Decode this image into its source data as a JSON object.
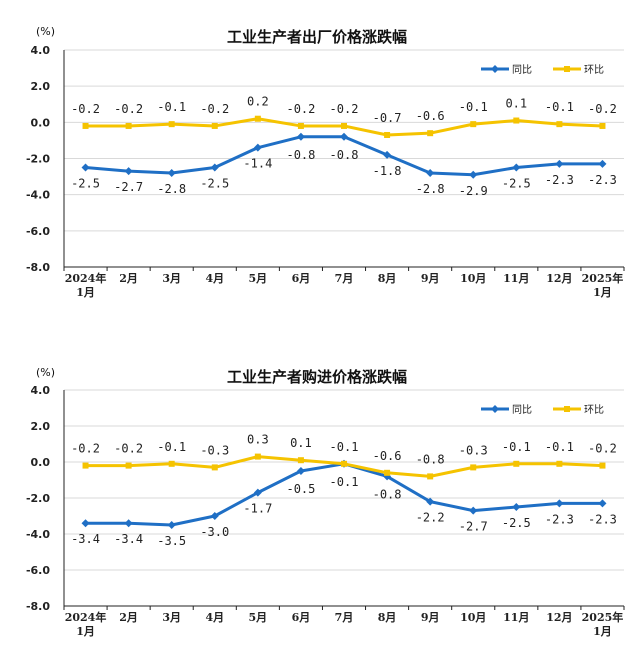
{
  "colors": {
    "yoy": "#1f6fc5",
    "mom": "#f5c300",
    "grid": "#d9d9d9",
    "plot_bg": "#ffffff",
    "axis": "#222222"
  },
  "chart_data": [
    {
      "type": "line",
      "title": "工业生产者出厂价格涨跌幅",
      "unit": "(%)",
      "categories": [
        {
          "line1": "2024年",
          "line2": "1月"
        },
        {
          "line1": "2月",
          "line2": ""
        },
        {
          "line1": "3月",
          "line2": ""
        },
        {
          "line1": "4月",
          "line2": ""
        },
        {
          "line1": "5月",
          "line2": ""
        },
        {
          "line1": "6月",
          "line2": ""
        },
        {
          "line1": "7月",
          "line2": ""
        },
        {
          "line1": "8月",
          "line2": ""
        },
        {
          "line1": "9月",
          "line2": ""
        },
        {
          "line1": "10月",
          "line2": ""
        },
        {
          "line1": "11月",
          "line2": ""
        },
        {
          "line1": "12月",
          "line2": ""
        },
        {
          "line1": "2025年",
          "line2": "1月"
        }
      ],
      "ylim": [
        -8.0,
        4.0
      ],
      "yticks": [
        "4.0",
        "2.0",
        "0.0",
        "-2.0",
        "-4.0",
        "-6.0",
        "-8.0"
      ],
      "grid": true,
      "legend_position": "top-right",
      "series": [
        {
          "name": "同比",
          "key": "yoy",
          "marker": "diamond",
          "values": [
            -2.5,
            -2.7,
            -2.8,
            -2.5,
            -1.4,
            -0.8,
            -0.8,
            -1.8,
            -2.8,
            -2.9,
            -2.5,
            -2.3,
            -2.3
          ],
          "labels": [
            "-2.5",
            "-2.7",
            "-2.8",
            "-2.5",
            "-1.4",
            "-0.8",
            "-0.8",
            "-1.8",
            "-2.8",
            "-2.9",
            "-2.5",
            "-2.3",
            "-2.3"
          ]
        },
        {
          "name": "环比",
          "key": "mom",
          "marker": "square",
          "values": [
            -0.2,
            -0.2,
            -0.1,
            -0.2,
            0.2,
            -0.2,
            -0.2,
            -0.7,
            -0.6,
            -0.1,
            0.1,
            -0.1,
            -0.2
          ],
          "labels": [
            "-0.2",
            "-0.2",
            "-0.1",
            "-0.2",
            "0.2",
            "-0.2",
            "-0.2",
            "-0.7",
            "-0.6",
            "-0.1",
            "0.1",
            "-0.1",
            "-0.2"
          ]
        }
      ]
    },
    {
      "type": "line",
      "title": "工业生产者购进价格涨跌幅",
      "unit": "(%)",
      "categories": [
        {
          "line1": "2024年",
          "line2": "1月"
        },
        {
          "line1": "2月",
          "line2": ""
        },
        {
          "line1": "3月",
          "line2": ""
        },
        {
          "line1": "4月",
          "line2": ""
        },
        {
          "line1": "5月",
          "line2": ""
        },
        {
          "line1": "6月",
          "line2": ""
        },
        {
          "line1": "7月",
          "line2": ""
        },
        {
          "line1": "8月",
          "line2": ""
        },
        {
          "line1": "9月",
          "line2": ""
        },
        {
          "line1": "10月",
          "line2": ""
        },
        {
          "line1": "11月",
          "line2": ""
        },
        {
          "line1": "12月",
          "line2": ""
        },
        {
          "line1": "2025年",
          "line2": "1月"
        }
      ],
      "ylim": [
        -8.0,
        4.0
      ],
      "yticks": [
        "4.0",
        "2.0",
        "0.0",
        "-2.0",
        "-4.0",
        "-6.0",
        "-8.0"
      ],
      "grid": true,
      "legend_position": "top-right",
      "series": [
        {
          "name": "同比",
          "key": "yoy",
          "marker": "diamond",
          "values": [
            -3.4,
            -3.4,
            -3.5,
            -3.0,
            -1.7,
            -0.5,
            -0.1,
            -0.8,
            -2.2,
            -2.7,
            -2.5,
            -2.3,
            -2.3
          ],
          "labels": [
            "-3.4",
            "-3.4",
            "-3.5",
            "-3.0",
            "-1.7",
            "-0.5",
            "-0.1",
            "-0.8",
            "-2.2",
            "-2.7",
            "-2.5",
            "-2.3",
            "-2.3"
          ]
        },
        {
          "name": "环比",
          "key": "mom",
          "marker": "square",
          "values": [
            -0.2,
            -0.2,
            -0.1,
            -0.3,
            0.3,
            0.1,
            -0.1,
            -0.6,
            -0.8,
            -0.3,
            -0.1,
            -0.1,
            -0.2
          ],
          "labels": [
            "-0.2",
            "-0.2",
            "-0.1",
            "-0.3",
            "0.3",
            "0.1",
            "-0.1",
            "-0.6",
            "-0.8",
            "-0.3",
            "-0.1",
            "-0.1",
            "-0.2"
          ]
        }
      ]
    }
  ]
}
